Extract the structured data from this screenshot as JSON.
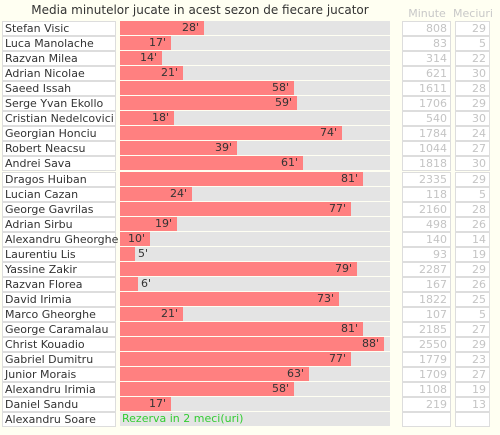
{
  "header": {
    "title": "Media minutelor jucate in acest sezon de fiecare jucator",
    "minutes": "Minute",
    "matches": "Meciuri"
  },
  "rows": [
    {
      "name": "Stefan Visic",
      "avg": 28,
      "avg_label": "28'",
      "minutes": 808,
      "matches": 29
    },
    {
      "name": "Luca Manolache",
      "avg": 17,
      "avg_label": "17'",
      "minutes": 83,
      "matches": 5
    },
    {
      "name": "Razvan Milea",
      "avg": 14,
      "avg_label": "14'",
      "minutes": 314,
      "matches": 22
    },
    {
      "name": "Adrian Nicolae",
      "avg": 21,
      "avg_label": "21'",
      "minutes": 621,
      "matches": 30
    },
    {
      "name": "Saeed Issah",
      "avg": 58,
      "avg_label": "58'",
      "minutes": 1611,
      "matches": 28
    },
    {
      "name": "Serge Yvan Ekollo",
      "avg": 59,
      "avg_label": "59'",
      "minutes": 1706,
      "matches": 29
    },
    {
      "name": "Cristian Nedelcovici",
      "avg": 18,
      "avg_label": "18'",
      "minutes": 540,
      "matches": 30
    },
    {
      "name": "Georgian Honciu",
      "avg": 74,
      "avg_label": "74'",
      "minutes": 1784,
      "matches": 24
    },
    {
      "name": "Robert Neacsu",
      "avg": 39,
      "avg_label": "39'",
      "minutes": 1044,
      "matches": 27
    },
    {
      "name": "Andrei Sava",
      "avg": 61,
      "avg_label": "61'",
      "minutes": 1818,
      "matches": 30
    },
    {
      "name": "Dragos Huiban",
      "avg": 81,
      "avg_label": "81'",
      "minutes": 2335,
      "matches": 29
    },
    {
      "name": "Lucian Cazan",
      "avg": 24,
      "avg_label": "24'",
      "minutes": 118,
      "matches": 5
    },
    {
      "name": "George Gavrilas",
      "avg": 77,
      "avg_label": "77'",
      "minutes": 2160,
      "matches": 28
    },
    {
      "name": "Adrian Sirbu",
      "avg": 19,
      "avg_label": "19'",
      "minutes": 498,
      "matches": 26
    },
    {
      "name": "Alexandru Gheorghe",
      "avg": 10,
      "avg_label": "10'",
      "minutes": 140,
      "matches": 14
    },
    {
      "name": "Laurentiu Lis",
      "avg": 5,
      "avg_label": "5'",
      "minutes": 93,
      "matches": 19
    },
    {
      "name": "Yassine Zakir",
      "avg": 79,
      "avg_label": "79'",
      "minutes": 2287,
      "matches": 29
    },
    {
      "name": "Razvan Florea",
      "avg": 6,
      "avg_label": "6'",
      "minutes": 167,
      "matches": 26
    },
    {
      "name": "David Irimia",
      "avg": 73,
      "avg_label": "73'",
      "minutes": 1822,
      "matches": 25
    },
    {
      "name": "Marco Gheorghe",
      "avg": 21,
      "avg_label": "21'",
      "minutes": 107,
      "matches": 5
    },
    {
      "name": "George Caramalau",
      "avg": 81,
      "avg_label": "81'",
      "minutes": 2185,
      "matches": 27
    },
    {
      "name": "Christ Kouadio",
      "avg": 88,
      "avg_label": "88'",
      "minutes": 2550,
      "matches": 29
    },
    {
      "name": "Gabriel Dumitru",
      "avg": 77,
      "avg_label": "77'",
      "minutes": 1779,
      "matches": 23
    },
    {
      "name": "Junior Morais",
      "avg": 63,
      "avg_label": "63'",
      "minutes": 1709,
      "matches": 27
    },
    {
      "name": "Alexandru Irimia",
      "avg": 58,
      "avg_label": "58'",
      "minutes": 1108,
      "matches": 19
    },
    {
      "name": "Daniel Sandu",
      "avg": 17,
      "avg_label": "17'",
      "minutes": 219,
      "matches": 13
    },
    {
      "name": "Alexandru Soare",
      "note": "Rezerva in 2 meci(uri)"
    }
  ]
}
